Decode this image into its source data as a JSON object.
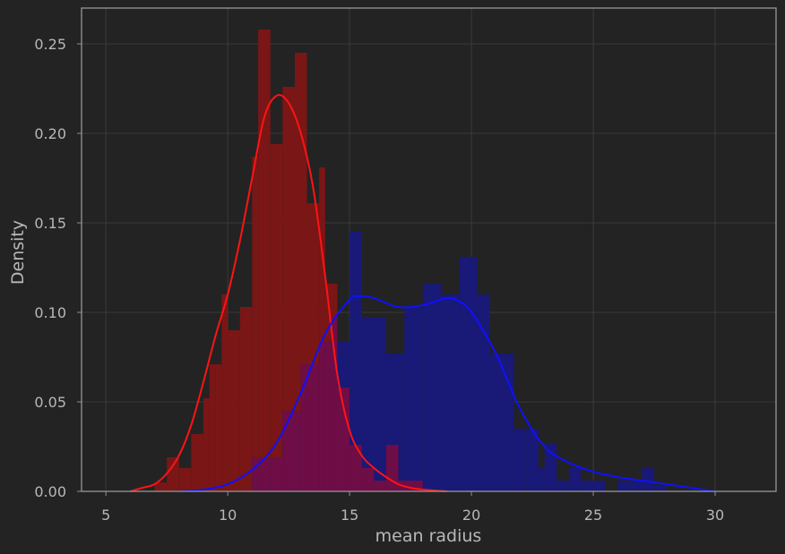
{
  "chart_data": {
    "type": "histogram",
    "xlabel": "mean radius",
    "ylabel": "Density",
    "xlim": [
      4,
      32.5
    ],
    "ylim": [
      0,
      0.27
    ],
    "xticks": [
      5,
      10,
      15,
      20,
      25,
      30
    ],
    "xtick_labels": [
      "5",
      "10",
      "15",
      "20",
      "25",
      "30"
    ],
    "yticks": [
      0,
      0.05,
      0.1,
      0.15,
      0.2,
      0.25
    ],
    "ytick_labels": [
      "0.00",
      "0.05",
      "0.10",
      "0.15",
      "0.20",
      "0.25"
    ],
    "grid": true,
    "background": "#232323",
    "grid_color": "#3a3a3a",
    "frame_color": "#8f8f8f",
    "text_color": "#b8b8b8",
    "overlap_color": "#6e0d46",
    "series": [
      {
        "color": "#7a1616",
        "line_color": "#ff1414",
        "bins": [
          {
            "x0": 7.0,
            "x1": 7.5,
            "h": 0.005
          },
          {
            "x0": 7.5,
            "x1": 8.0,
            "h": 0.019
          },
          {
            "x0": 8.0,
            "x1": 8.5,
            "h": 0.013
          },
          {
            "x0": 8.5,
            "x1": 9.0,
            "h": 0.032
          },
          {
            "x0": 9.0,
            "x1": 9.25,
            "h": 0.052
          },
          {
            "x0": 9.25,
            "x1": 9.5,
            "h": 0.071
          },
          {
            "x0": 9.5,
            "x1": 9.75,
            "h": 0.071
          },
          {
            "x0": 9.75,
            "x1": 10.0,
            "h": 0.11
          },
          {
            "x0": 10.0,
            "x1": 10.5,
            "h": 0.09
          },
          {
            "x0": 10.5,
            "x1": 11.0,
            "h": 0.103
          },
          {
            "x0": 11.0,
            "x1": 11.25,
            "h": 0.187
          },
          {
            "x0": 11.25,
            "x1": 11.75,
            "h": 0.258
          },
          {
            "x0": 11.75,
            "x1": 12.25,
            "h": 0.194
          },
          {
            "x0": 12.25,
            "x1": 12.75,
            "h": 0.226
          },
          {
            "x0": 12.75,
            "x1": 13.25,
            "h": 0.245
          },
          {
            "x0": 13.25,
            "x1": 13.75,
            "h": 0.161
          },
          {
            "x0": 13.75,
            "x1": 14.0,
            "h": 0.181
          },
          {
            "x0": 14.0,
            "x1": 14.5,
            "h": 0.116
          },
          {
            "x0": 14.5,
            "x1": 15.0,
            "h": 0.058
          },
          {
            "x0": 15.0,
            "x1": 15.5,
            "h": 0.026
          },
          {
            "x0": 15.5,
            "x1": 16.0,
            "h": 0.013
          },
          {
            "x0": 16.0,
            "x1": 16.5,
            "h": 0.006
          },
          {
            "x0": 16.5,
            "x1": 17.0,
            "h": 0.026
          },
          {
            "x0": 17.0,
            "x1": 17.5,
            "h": 0.006
          },
          {
            "x0": 17.5,
            "x1": 18.0,
            "h": 0.006
          }
        ],
        "kde": [
          [
            6.0,
            0.0
          ],
          [
            6.5,
            0.002
          ],
          [
            7.0,
            0.004
          ],
          [
            7.5,
            0.01
          ],
          [
            8.0,
            0.02
          ],
          [
            8.5,
            0.037
          ],
          [
            9.0,
            0.061
          ],
          [
            9.5,
            0.087
          ],
          [
            10.0,
            0.11
          ],
          [
            10.5,
            0.14
          ],
          [
            11.0,
            0.175
          ],
          [
            11.5,
            0.209
          ],
          [
            12.0,
            0.221
          ],
          [
            12.5,
            0.217
          ],
          [
            13.0,
            0.2
          ],
          [
            13.5,
            0.17
          ],
          [
            14.0,
            0.12
          ],
          [
            14.5,
            0.065
          ],
          [
            15.0,
            0.034
          ],
          [
            15.5,
            0.02
          ],
          [
            16.0,
            0.013
          ],
          [
            16.5,
            0.008
          ],
          [
            17.0,
            0.004
          ],
          [
            17.5,
            0.002
          ],
          [
            18.0,
            0.001
          ],
          [
            19.0,
            0.0
          ]
        ]
      },
      {
        "color": "#191977",
        "line_color": "#1010ff",
        "bins": [
          {
            "x0": 11.0,
            "x1": 11.75,
            "h": 0.019
          },
          {
            "x0": 11.75,
            "x1": 12.25,
            "h": 0.019
          },
          {
            "x0": 12.25,
            "x1": 13.0,
            "h": 0.045
          },
          {
            "x0": 13.0,
            "x1": 13.75,
            "h": 0.071
          },
          {
            "x0": 13.75,
            "x1": 14.25,
            "h": 0.084
          },
          {
            "x0": 14.25,
            "x1": 14.5,
            "h": 0.097
          },
          {
            "x0": 14.5,
            "x1": 15.0,
            "h": 0.084
          },
          {
            "x0": 15.0,
            "x1": 15.5,
            "h": 0.145
          },
          {
            "x0": 15.5,
            "x1": 16.5,
            "h": 0.097
          },
          {
            "x0": 16.5,
            "x1": 17.25,
            "h": 0.077
          },
          {
            "x0": 17.25,
            "x1": 18.0,
            "h": 0.103
          },
          {
            "x0": 18.0,
            "x1": 18.75,
            "h": 0.116
          },
          {
            "x0": 18.75,
            "x1": 19.5,
            "h": 0.11
          },
          {
            "x0": 19.5,
            "x1": 20.25,
            "h": 0.131
          },
          {
            "x0": 20.25,
            "x1": 20.75,
            "h": 0.11
          },
          {
            "x0": 20.75,
            "x1": 21.25,
            "h": 0.077
          },
          {
            "x0": 21.25,
            "x1": 21.75,
            "h": 0.077
          },
          {
            "x0": 21.75,
            "x1": 22.25,
            "h": 0.035
          },
          {
            "x0": 22.25,
            "x1": 22.75,
            "h": 0.035
          },
          {
            "x0": 22.75,
            "x1": 23.0,
            "h": 0.013
          },
          {
            "x0": 23.0,
            "x1": 23.5,
            "h": 0.027
          },
          {
            "x0": 23.5,
            "x1": 24.0,
            "h": 0.006
          },
          {
            "x0": 24.0,
            "x1": 24.5,
            "h": 0.013
          },
          {
            "x0": 24.5,
            "x1": 25.0,
            "h": 0.006
          },
          {
            "x0": 25.0,
            "x1": 25.5,
            "h": 0.006
          },
          {
            "x0": 26.0,
            "x1": 26.5,
            "h": 0.006
          },
          {
            "x0": 26.5,
            "x1": 27.0,
            "h": 0.006
          },
          {
            "x0": 27.0,
            "x1": 27.5,
            "h": 0.013
          },
          {
            "x0": 27.5,
            "x1": 28.0,
            "h": 0.003
          }
        ],
        "kde": [
          [
            8.0,
            0.0
          ],
          [
            9.0,
            0.001
          ],
          [
            10.0,
            0.004
          ],
          [
            11.0,
            0.012
          ],
          [
            12.0,
            0.027
          ],
          [
            13.0,
            0.055
          ],
          [
            14.0,
            0.088
          ],
          [
            15.0,
            0.107
          ],
          [
            15.5,
            0.109
          ],
          [
            16.0,
            0.108
          ],
          [
            17.0,
            0.103
          ],
          [
            18.0,
            0.104
          ],
          [
            19.0,
            0.108
          ],
          [
            19.5,
            0.106
          ],
          [
            20.0,
            0.1
          ],
          [
            21.0,
            0.077
          ],
          [
            22.0,
            0.046
          ],
          [
            23.0,
            0.025
          ],
          [
            24.0,
            0.016
          ],
          [
            25.0,
            0.011
          ],
          [
            26.0,
            0.008
          ],
          [
            27.0,
            0.006
          ],
          [
            28.0,
            0.004
          ],
          [
            29.0,
            0.002
          ],
          [
            30.0,
            0.0
          ]
        ]
      }
    ]
  }
}
